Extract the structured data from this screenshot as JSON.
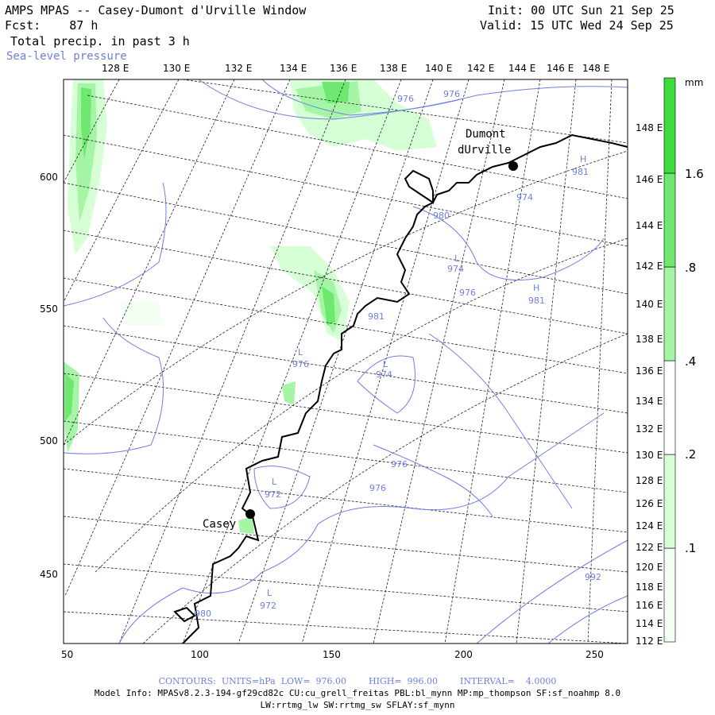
{
  "header": {
    "title": "AMPS MPAS -- Casey-Dumont d'Urville Window",
    "fcst": "Fcst:    87 h",
    "field": " Total precip. in past 3 h",
    "overlay": "Sea-level pressure",
    "init": "Init: 00 UTC Sun 21 Sep 25",
    "valid": "Valid: 15 UTC Wed 24 Sep 25"
  },
  "top_lon_labels": [
    "128 E",
    "130 E",
    "132 E",
    "134 E",
    "136 E",
    "138 E",
    "140 E",
    "142 E",
    "144 E",
    "146 E",
    "148 E"
  ],
  "right_lon_labels": [
    "148 E",
    "146 E",
    "144 E",
    "142 E",
    "140 E",
    "138 E",
    "136 E",
    "134 E",
    "132 E",
    "130 E",
    "128 E",
    "126 E",
    "124 E",
    "122 E",
    "120 E",
    "118 E",
    "116 E",
    "114 E",
    "112 E"
  ],
  "x_ticks": [
    "50",
    "100",
    "150",
    "200",
    "250"
  ],
  "y_ticks": [
    "600",
    "550",
    "500",
    "450"
  ],
  "stations": [
    {
      "name": "Casey"
    },
    {
      "name1": "Dumont",
      "name2": "dUrville"
    }
  ],
  "pressure_labels": [
    "976",
    "976",
    "974",
    "981",
    "974",
    "976",
    "981",
    "981",
    "976",
    "974",
    "976",
    "976",
    "972",
    "972",
    "992",
    "980",
    "980",
    "L",
    "L",
    "L",
    "L",
    "L",
    "H",
    "H"
  ],
  "colorbar": {
    "unit": "mm",
    "levels": [
      ".1",
      ".2",
      ".4",
      ".8",
      "1.6"
    ],
    "colors": [
      "#f4fff4",
      "#d6ffd6",
      "#a6f5a6",
      "#6ee86e",
      "#3ddc3d"
    ]
  },
  "footer": {
    "contours": "CONTOURS:  UNITS=hPa  LOW=  976.00        HIGH=  996.00        INTERVAL=    4.0000",
    "model_info": "Model Info: MPASv8.2.3-194-gf29cd82c CU:cu_grell_freitas PBL:bl_mynn MP:mp_thompson SF:sf_noahmp 8.0",
    "model_info2": "LW:rrtmg_lw SW:rrtmg_sw SFLAY:sf_mynn"
  }
}
